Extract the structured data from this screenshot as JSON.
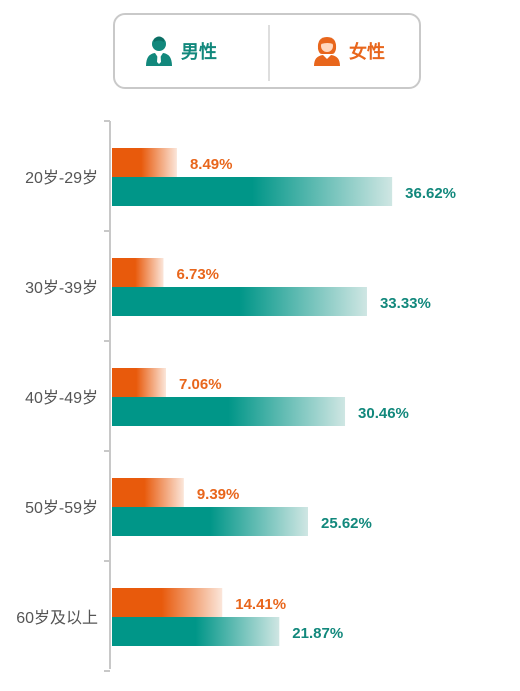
{
  "legend": {
    "male_label": "男性",
    "female_label": "女性",
    "male_icon": "male-user-icon",
    "female_icon": "female-user-icon"
  },
  "colors": {
    "male": "#009688",
    "female": "#e85a0c",
    "male_label": "#12887c",
    "female_label": "#e8661c"
  },
  "chart_data": {
    "type": "bar",
    "orientation": "horizontal",
    "categories": [
      "20岁-29岁",
      "30岁-39岁",
      "40岁-49岁",
      "50岁-59岁",
      "60岁及以上"
    ],
    "series": [
      {
        "name": "女性",
        "values": [
          8.49,
          6.73,
          7.06,
          9.39,
          14.41
        ]
      },
      {
        "name": "男性",
        "values": [
          36.62,
          33.33,
          30.46,
          25.62,
          21.87
        ]
      }
    ],
    "value_labels": {
      "女性": [
        "8.49%",
        "6.73%",
        "7.06%",
        "9.39%",
        "14.41%"
      ],
      "男性": [
        "36.62%",
        "33.33%",
        "30.46%",
        "25.62%",
        "21.87%"
      ]
    },
    "xlim": [
      0,
      40
    ],
    "legend_position": "top",
    "grid": false
  }
}
